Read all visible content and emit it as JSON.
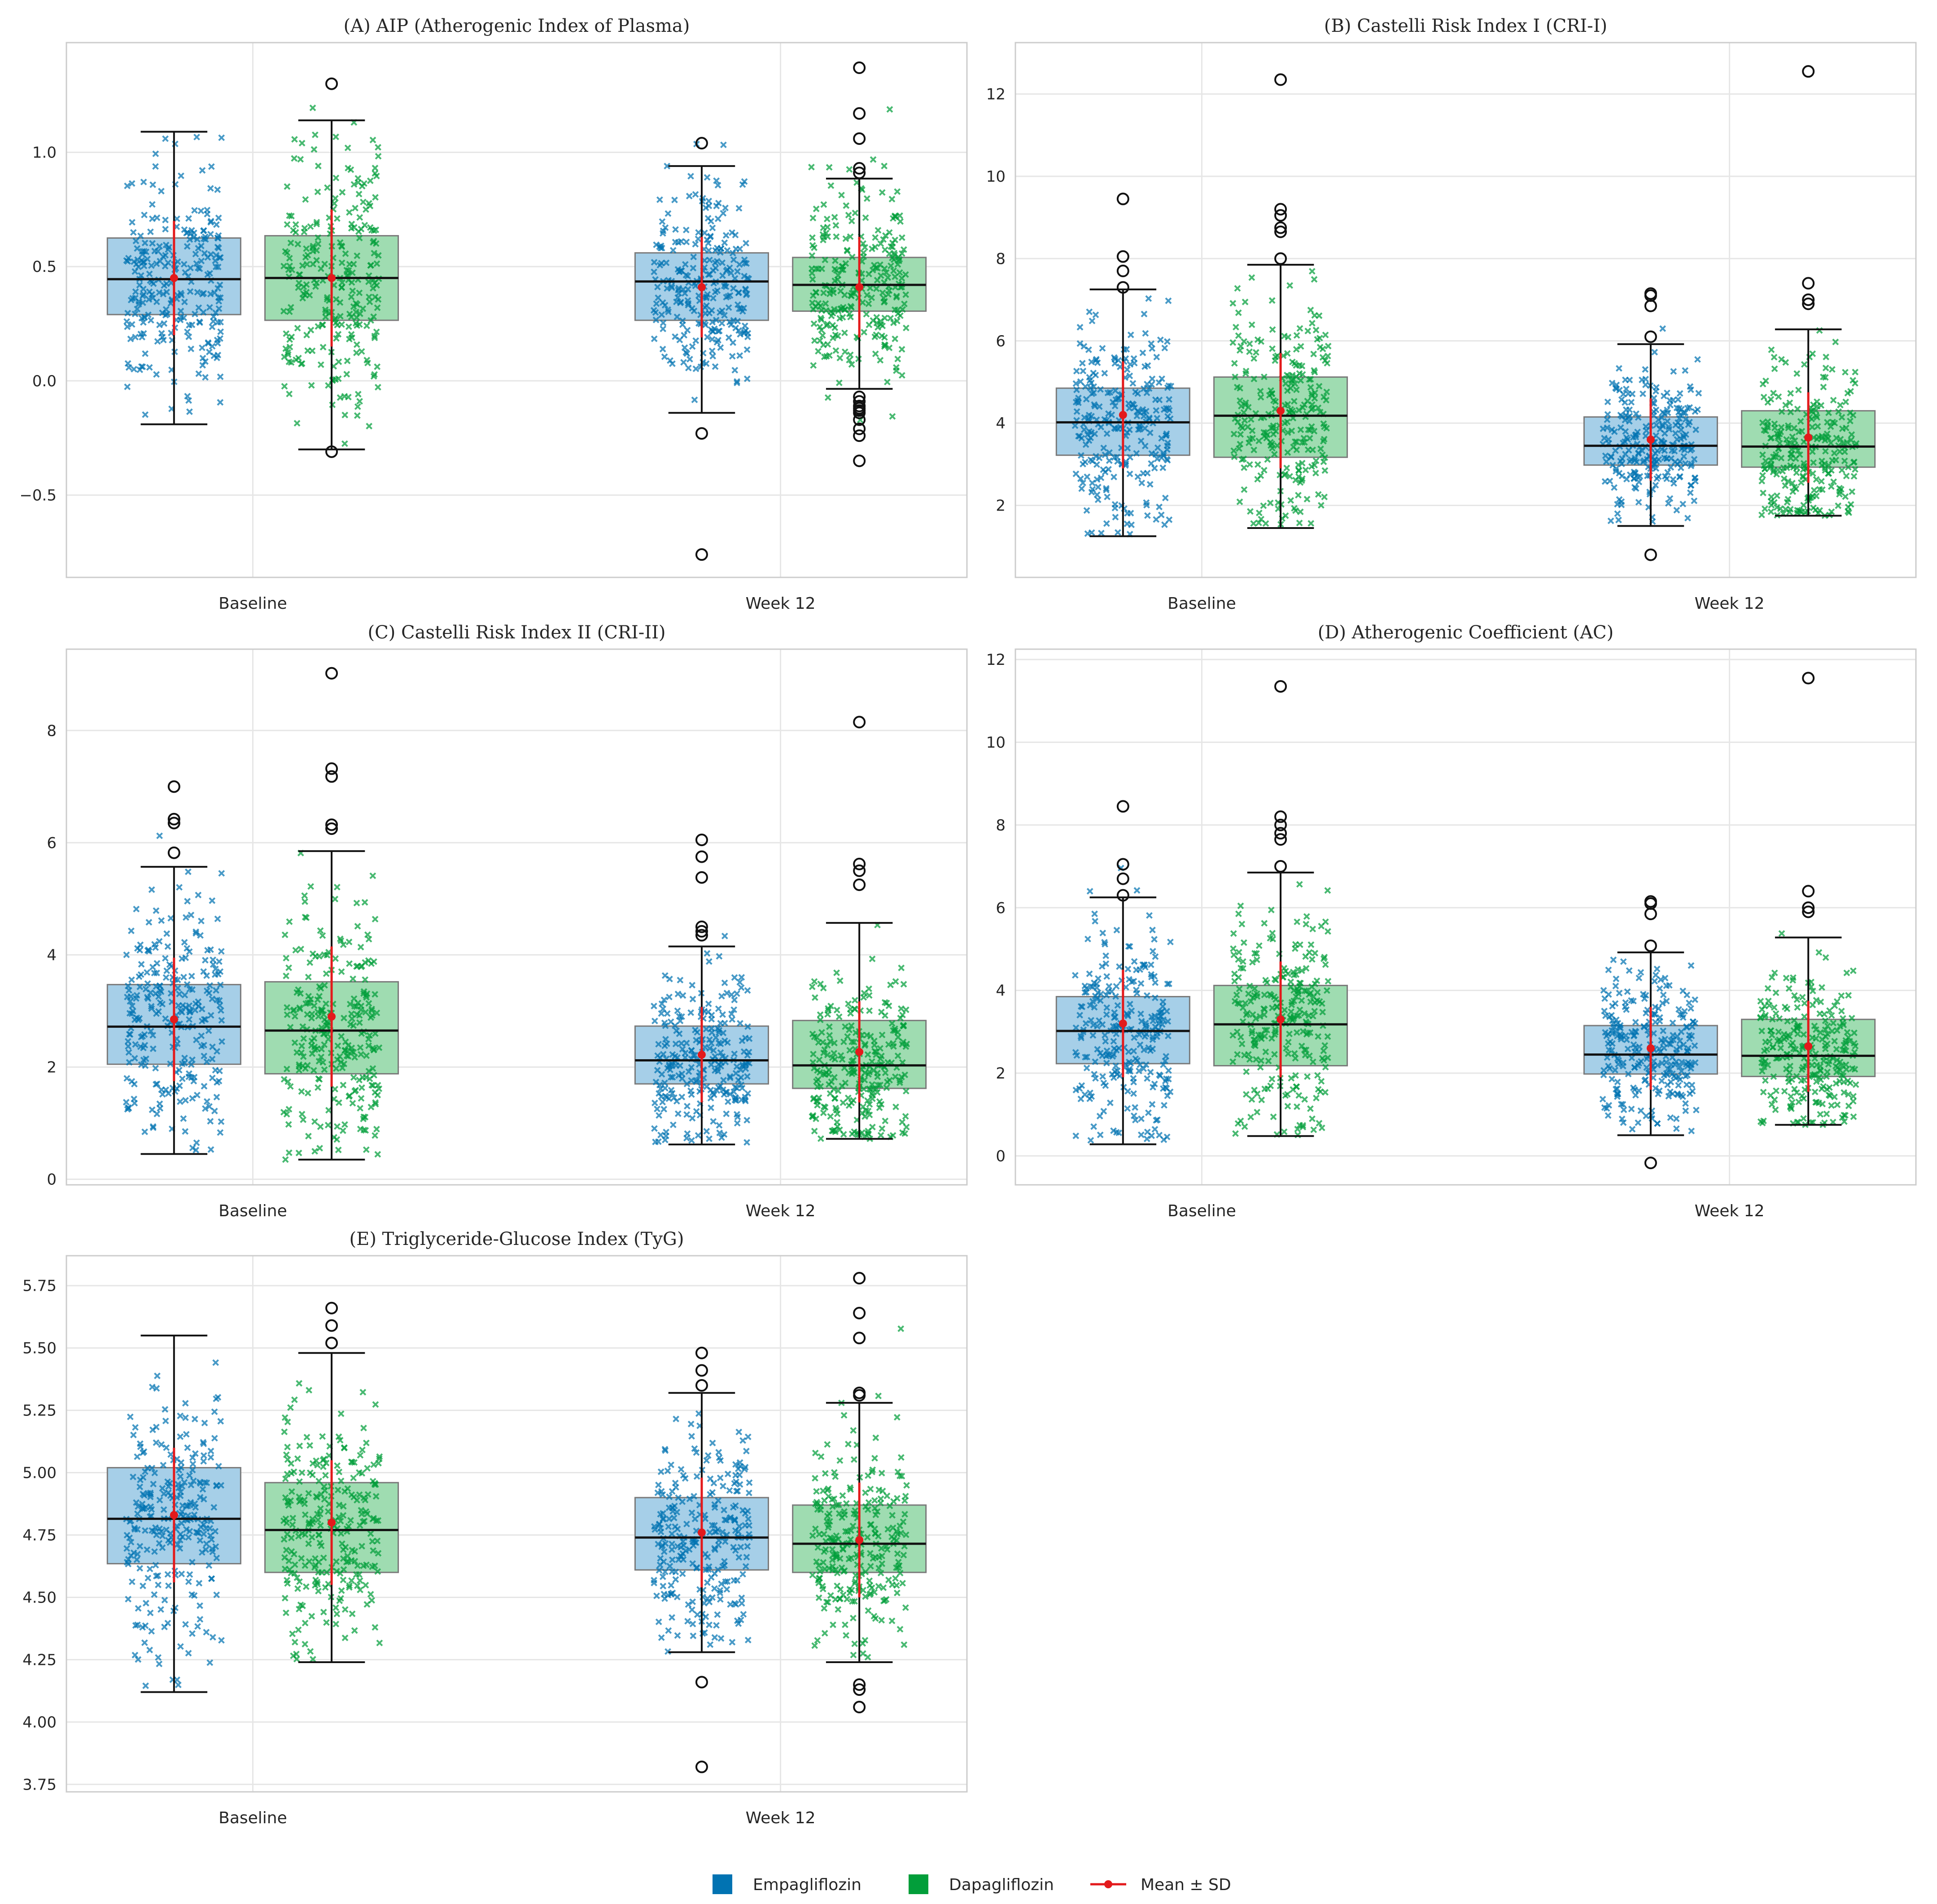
{
  "colors": {
    "empa": "#0173b2",
    "empa_fill": "#a6cfe8",
    "dapa": "#029e3a",
    "dapa_fill": "#9fdcb1",
    "mean": "#e31a1c",
    "grid": "#e6e6e6",
    "frame": "#cccccc"
  },
  "legend": {
    "items": [
      {
        "label": "Empagliflozin",
        "kind": "patch",
        "color": "#0173b2"
      },
      {
        "label": "Dapagliflozin",
        "kind": "patch",
        "color": "#029e3a"
      },
      {
        "label": "Mean ± SD",
        "kind": "line",
        "color": "#e31a1c"
      }
    ]
  },
  "chart_data": [
    {
      "type": "box",
      "title": "(A) AIP (Atherogenic Index of Plasma)",
      "categories": [
        "Baseline",
        "Week 12"
      ],
      "ylim": [
        -0.86,
        1.48
      ],
      "yticks": [
        -0.5,
        0.0,
        0.5,
        1.0
      ],
      "ytick_labels": [
        "−0.5",
        "0.0",
        "0.5",
        "1.0"
      ],
      "groups": [
        {
          "category": "Baseline",
          "series": "Empagliflozin",
          "whisker_low": -0.19,
          "q1": 0.29,
          "median": 0.445,
          "q3": 0.625,
          "whisker_high": 1.09,
          "mean": 0.45,
          "sd": 0.25,
          "outliers": [],
          "scatter_low": -0.15,
          "scatter_high": 1.08
        },
        {
          "category": "Baseline",
          "series": "Dapagliflozin",
          "whisker_low": -0.3,
          "q1": 0.265,
          "median": 0.45,
          "q3": 0.635,
          "whisker_high": 1.14,
          "mean": 0.45,
          "sd": 0.3,
          "outliers": [
            -0.31,
            1.3
          ],
          "scatter_low": -0.3,
          "scatter_high": 1.3
        },
        {
          "category": "Week 12",
          "series": "Empagliflozin",
          "whisker_low": -0.14,
          "q1": 0.265,
          "median": 0.435,
          "q3": 0.56,
          "whisker_high": 0.94,
          "mean": 0.41,
          "sd": 0.22,
          "outliers": [
            -0.23,
            -0.76,
            1.04
          ],
          "scatter_low": -0.23,
          "scatter_high": 1.04
        },
        {
          "category": "Week 12",
          "series": "Dapagliflozin",
          "whisker_low": -0.035,
          "q1": 0.305,
          "median": 0.42,
          "q3": 0.54,
          "whisker_high": 0.885,
          "mean": 0.41,
          "sd": 0.22,
          "outliers": [
            -0.07,
            -0.09,
            -0.11,
            -0.12,
            -0.13,
            -0.14,
            -0.17,
            -0.21,
            -0.24,
            -0.35,
            0.91,
            0.93,
            1.06,
            1.17,
            1.37
          ],
          "scatter_low": -0.35,
          "scatter_high": 1.37
        }
      ]
    },
    {
      "type": "box",
      "title": "(B) Castelli Risk Index I (CRI-I)",
      "categories": [
        "Baseline",
        "Week 12"
      ],
      "ylim": [
        0.25,
        13.25
      ],
      "yticks": [
        2,
        4,
        6,
        8,
        10,
        12
      ],
      "ytick_labels": [
        "2",
        "4",
        "6",
        "8",
        "10",
        "12"
      ],
      "groups": [
        {
          "category": "Baseline",
          "series": "Empagliflozin",
          "whisker_low": 1.25,
          "q1": 3.22,
          "median": 4.02,
          "q3": 4.85,
          "whisker_high": 7.25,
          "mean": 4.2,
          "sd": 1.3,
          "outliers": [
            7.3,
            7.7,
            8.05,
            9.45
          ],
          "scatter_low": 1.3,
          "scatter_high": 8.2
        },
        {
          "category": "Baseline",
          "series": "Dapagliflozin",
          "whisker_low": 1.45,
          "q1": 3.17,
          "median": 4.18,
          "q3": 5.12,
          "whisker_high": 7.85,
          "mean": 4.3,
          "sd": 1.4,
          "outliers": [
            8.0,
            8.65,
            8.75,
            9.05,
            9.2,
            12.35
          ],
          "scatter_low": 1.5,
          "scatter_high": 8.8
        },
        {
          "category": "Week 12",
          "series": "Empagliflozin",
          "whisker_low": 1.5,
          "q1": 2.98,
          "median": 3.45,
          "q3": 4.15,
          "whisker_high": 5.92,
          "mean": 3.6,
          "sd": 1.0,
          "outliers": [
            0.8,
            6.1,
            6.85,
            7.1,
            7.15
          ],
          "scatter_low": 1.6,
          "scatter_high": 7.2
        },
        {
          "category": "Week 12",
          "series": "Dapagliflozin",
          "whisker_low": 1.75,
          "q1": 2.93,
          "median": 3.43,
          "q3": 4.3,
          "whisker_high": 6.28,
          "mean": 3.65,
          "sd": 1.1,
          "outliers": [
            6.9,
            7.0,
            7.4,
            12.55
          ],
          "scatter_low": 1.75,
          "scatter_high": 7.4
        }
      ]
    },
    {
      "type": "box",
      "title": "(C) Castelli Risk Index II (CRI-II)",
      "categories": [
        "Baseline",
        "Week 12"
      ],
      "ylim": [
        -0.1,
        9.45
      ],
      "yticks": [
        0,
        2,
        4,
        6,
        8
      ],
      "ytick_labels": [
        "0",
        "2",
        "4",
        "6",
        "8"
      ],
      "groups": [
        {
          "category": "Baseline",
          "series": "Empagliflozin",
          "whisker_low": 0.45,
          "q1": 2.05,
          "median": 2.72,
          "q3": 3.47,
          "whisker_high": 5.57,
          "mean": 2.85,
          "sd": 1.1,
          "outliers": [
            5.82,
            6.35,
            6.42,
            7.0
          ],
          "scatter_low": 0.5,
          "scatter_high": 6.4
        },
        {
          "category": "Baseline",
          "series": "Dapagliflozin",
          "whisker_low": 0.35,
          "q1": 1.88,
          "median": 2.65,
          "q3": 3.52,
          "whisker_high": 5.85,
          "mean": 2.9,
          "sd": 1.25,
          "outliers": [
            6.25,
            6.32,
            7.18,
            7.32,
            9.02
          ],
          "scatter_low": 0.35,
          "scatter_high": 7.3
        },
        {
          "category": "Week 12",
          "series": "Empagliflozin",
          "whisker_low": 0.62,
          "q1": 1.7,
          "median": 2.12,
          "q3": 2.73,
          "whisker_high": 4.15,
          "mean": 2.22,
          "sd": 0.85,
          "outliers": [
            4.35,
            4.42,
            4.5,
            5.38,
            5.75,
            6.05
          ],
          "scatter_low": 0.62,
          "scatter_high": 6.05
        },
        {
          "category": "Week 12",
          "series": "Dapagliflozin",
          "whisker_low": 0.72,
          "q1": 1.62,
          "median": 2.03,
          "q3": 2.83,
          "whisker_high": 4.57,
          "mean": 2.27,
          "sd": 0.9,
          "outliers": [
            5.25,
            5.5,
            5.62,
            8.15
          ],
          "scatter_low": 0.72,
          "scatter_high": 5.6
        }
      ]
    },
    {
      "type": "box",
      "title": "(D) Atherogenic Coefficient (AC)",
      "categories": [
        "Baseline",
        "Week 12"
      ],
      "ylim": [
        -0.7,
        12.25
      ],
      "yticks": [
        0,
        2,
        4,
        6,
        8,
        10,
        12
      ],
      "ytick_labels": [
        "0",
        "2",
        "4",
        "6",
        "8",
        "10",
        "12"
      ],
      "groups": [
        {
          "category": "Baseline",
          "series": "Empagliflozin",
          "whisker_low": 0.28,
          "q1": 2.23,
          "median": 3.02,
          "q3": 3.85,
          "whisker_high": 6.25,
          "mean": 3.2,
          "sd": 1.3,
          "outliers": [
            6.3,
            6.7,
            7.05,
            8.45
          ],
          "scatter_low": 0.3,
          "scatter_high": 7.2
        },
        {
          "category": "Baseline",
          "series": "Dapagliflozin",
          "whisker_low": 0.48,
          "q1": 2.18,
          "median": 3.18,
          "q3": 4.12,
          "whisker_high": 6.85,
          "mean": 3.3,
          "sd": 1.4,
          "outliers": [
            7.0,
            7.65,
            7.8,
            8.0,
            8.2,
            11.35
          ],
          "scatter_low": 0.5,
          "scatter_high": 7.8
        },
        {
          "category": "Week 12",
          "series": "Empagliflozin",
          "whisker_low": 0.5,
          "q1": 1.98,
          "median": 2.45,
          "q3": 3.15,
          "whisker_high": 4.92,
          "mean": 2.6,
          "sd": 1.0,
          "outliers": [
            -0.17,
            5.08,
            5.85,
            6.1,
            6.15
          ],
          "scatter_low": 0.6,
          "scatter_high": 6.15
        },
        {
          "category": "Week 12",
          "series": "Dapagliflozin",
          "whisker_low": 0.75,
          "q1": 1.92,
          "median": 2.42,
          "q3": 3.3,
          "whisker_high": 5.28,
          "mean": 2.65,
          "sd": 1.1,
          "outliers": [
            5.9,
            6.0,
            6.4,
            11.55
          ],
          "scatter_low": 0.75,
          "scatter_high": 6.4
        }
      ]
    },
    {
      "type": "box",
      "title": "(E) Triglyceride-Glucose Index (TyG)",
      "categories": [
        "Baseline",
        "Week 12"
      ],
      "ylim": [
        3.72,
        5.87
      ],
      "yticks": [
        3.75,
        4.0,
        4.25,
        4.5,
        4.75,
        5.0,
        5.25,
        5.5,
        5.75
      ],
      "ytick_labels": [
        "3.75",
        "4.00",
        "4.25",
        "4.50",
        "4.75",
        "5.00",
        "5.25",
        "5.50",
        "5.75"
      ],
      "groups": [
        {
          "category": "Baseline",
          "series": "Empagliflozin",
          "whisker_low": 4.12,
          "q1": 4.635,
          "median": 4.815,
          "q3": 5.02,
          "whisker_high": 5.55,
          "mean": 4.83,
          "sd": 0.27,
          "outliers": [],
          "scatter_low": 4.12,
          "scatter_high": 5.55
        },
        {
          "category": "Baseline",
          "series": "Dapagliflozin",
          "whisker_low": 4.24,
          "q1": 4.6,
          "median": 4.77,
          "q3": 4.96,
          "whisker_high": 5.48,
          "mean": 4.8,
          "sd": 0.25,
          "outliers": [
            5.52,
            5.59,
            5.66
          ],
          "scatter_low": 4.24,
          "scatter_high": 5.6
        },
        {
          "category": "Week 12",
          "series": "Empagliflozin",
          "whisker_low": 4.28,
          "q1": 4.61,
          "median": 4.74,
          "q3": 4.9,
          "whisker_high": 5.32,
          "mean": 4.76,
          "sd": 0.22,
          "outliers": [
            3.82,
            4.16,
            5.35,
            5.41,
            5.48
          ],
          "scatter_low": 4.28,
          "scatter_high": 5.48
        },
        {
          "category": "Week 12",
          "series": "Dapagliflozin",
          "whisker_low": 4.24,
          "q1": 4.6,
          "median": 4.715,
          "q3": 4.87,
          "whisker_high": 5.28,
          "mean": 4.73,
          "sd": 0.23,
          "outliers": [
            4.06,
            4.13,
            4.15,
            5.31,
            5.32,
            5.54,
            5.64,
            5.78
          ],
          "scatter_low": 4.06,
          "scatter_high": 5.78
        }
      ]
    }
  ]
}
